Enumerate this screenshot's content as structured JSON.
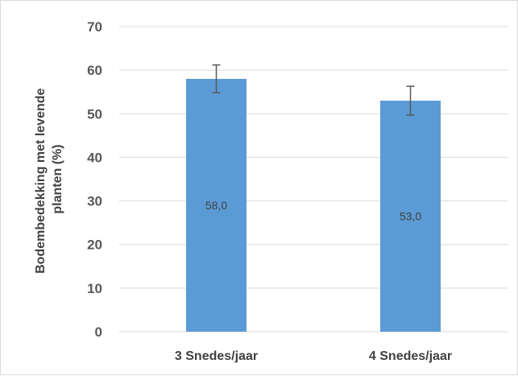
{
  "chart_data": {
    "type": "bar",
    "categories": [
      "3 Snedes/jaar",
      "4 Snedes/jaar"
    ],
    "values": [
      58.0,
      53.0
    ],
    "data_labels": [
      "58,0",
      "53,0"
    ],
    "error_bars": [
      3.2,
      3.3
    ],
    "title": "",
    "xlabel": "",
    "ylabel_lines": [
      "Bodembedekking met levende",
      "planten (%)"
    ],
    "ylim": [
      0,
      70
    ],
    "yticks": [
      0,
      10,
      20,
      30,
      40,
      50,
      60,
      70
    ],
    "ytick_labels": [
      "0",
      "10",
      "20",
      "30",
      "40",
      "50",
      "60",
      "70"
    ],
    "grid": "horizontal",
    "colors": {
      "bar": "#5b9bd5",
      "grid": "#d9d9d9",
      "error_bar": "#595959"
    }
  }
}
